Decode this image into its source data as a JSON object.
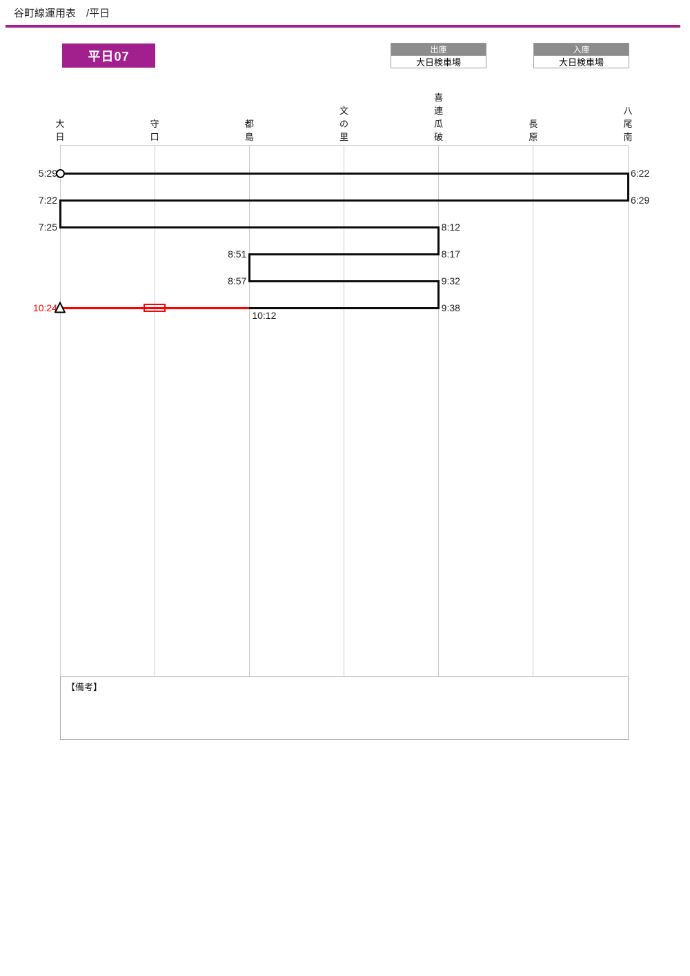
{
  "header": {
    "title": "谷町線運用表　/平日"
  },
  "badge": {
    "label": "平日07"
  },
  "depot_out": {
    "header": "出庫",
    "value": "大日検車場"
  },
  "depot_in": {
    "header": "入庫",
    "value": "大日検車場"
  },
  "remarks": {
    "label": "【備考】"
  },
  "colors": {
    "accent": "#A2208E",
    "revenue_line": "#0b0b0b",
    "deadhead_line": "#ff0000",
    "grid_line": "#c9c9c9",
    "box_header_bg": "#8c8c8c"
  },
  "chart_data": {
    "type": "train-operation-diagram",
    "title": "谷町線運用表 平日07",
    "stations": [
      "大日",
      "守口",
      "都島",
      "文の里",
      "喜連瓜破",
      "長原",
      "八尾南"
    ],
    "trips": [
      {
        "row": 0,
        "dep_station": "大日",
        "dep_time": "5:29",
        "arr_station": "八尾南",
        "arr_time": "6:22",
        "service": "revenue",
        "start_marker": "depot-out-circle"
      },
      {
        "row": 1,
        "dep_station": "八尾南",
        "dep_time": "6:29",
        "arr_station": "大日",
        "arr_time": "7:22",
        "service": "revenue"
      },
      {
        "row": 2,
        "dep_station": "大日",
        "dep_time": "7:25",
        "arr_station": "喜連瓜破",
        "arr_time": "8:12",
        "service": "revenue"
      },
      {
        "row": 3,
        "dep_station": "喜連瓜破",
        "dep_time": "8:17",
        "arr_station": "都島",
        "arr_time": "8:51",
        "service": "revenue"
      },
      {
        "row": 4,
        "dep_station": "都島",
        "dep_time": "8:57",
        "arr_station": "喜連瓜破",
        "arr_time": "9:32",
        "service": "revenue"
      },
      {
        "row": 5,
        "dep_station": "喜連瓜破",
        "dep_time": "9:38",
        "arr_station": "都島",
        "arr_time": "10:12",
        "service": "revenue",
        "arr_label_placement": "below"
      },
      {
        "row": 5,
        "dep_station": "都島",
        "dep_time": "10:12",
        "arr_station": "大日",
        "arr_time": "10:24",
        "service": "deadhead",
        "show_dep_label": false,
        "end_marker": "depot-in-triangle",
        "symbol": {
          "type": "deadhead-box",
          "station": "守口"
        }
      }
    ]
  }
}
